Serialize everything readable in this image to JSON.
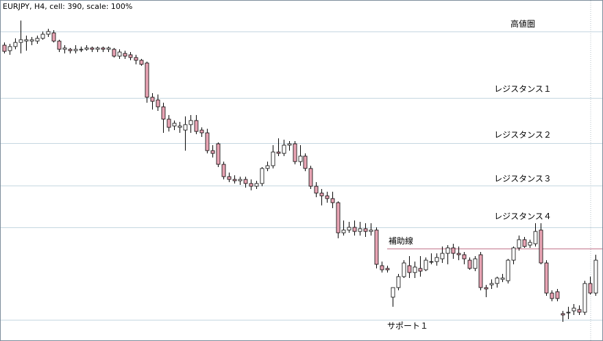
{
  "chart_data": {
    "type": "candlestick",
    "title": "EURJPY, H4, cell: 390, scale: 100%",
    "ylim": [
      0,
      498
    ],
    "up_color": "#ffffff",
    "down_color": "#e8a4b4",
    "wick_color": "#000000",
    "levels": [
      {
        "label": "高値圏",
        "value": 452,
        "color": "#c4d6e0"
      },
      {
        "label": "レジスタンス１",
        "value": 355,
        "color": "#c4d6e0"
      },
      {
        "label": "レジスタンス２",
        "value": 289,
        "color": "#c4d6e0"
      },
      {
        "label": "レジスタンス３",
        "value": 227,
        "color": "#c4d6e0"
      },
      {
        "label": "レジスタンス４",
        "value": 166,
        "color": "#c4d6e0"
      },
      {
        "label": "補助線",
        "value": 135,
        "color": "#c07088"
      },
      {
        "label": "サポート１",
        "value": 31,
        "color": "#c4d6e0"
      }
    ],
    "open": [
      432,
      424,
      430,
      436,
      438,
      438,
      438,
      442,
      448,
      450,
      438,
      426,
      426,
      424,
      425,
      426,
      428,
      426,
      428,
      426,
      426,
      416,
      420,
      418,
      414,
      410,
      406,
      356,
      352,
      342,
      324,
      314,
      312,
      308,
      316,
      322,
      308,
      304,
      278,
      288,
      258,
      240,
      236,
      234,
      236,
      230,
      226,
      230,
      252,
      256,
      276,
      274,
      286,
      288,
      262,
      270,
      252,
      226,
      216,
      212,
      208,
      202,
      158,
      162,
      166,
      160,
      164,
      160,
      162,
      110,
      106,
      64,
      78,
      94,
      110,
      100,
      106,
      104,
      116,
      116,
      120,
      128,
      136,
      128,
      126,
      118,
      106,
      126,
      78,
      82,
      84,
      90,
      88,
      118,
      136,
      148,
      140,
      142,
      162,
      114,
      70,
      72,
      40,
      42,
      44,
      46,
      42,
      84,
      70
    ],
    "high": [
      436,
      434,
      442,
      468,
      446,
      444,
      446,
      452,
      456,
      454,
      440,
      432,
      428,
      432,
      430,
      432,
      430,
      430,
      430,
      430,
      428,
      426,
      424,
      422,
      418,
      412,
      408,
      362,
      360,
      348,
      330,
      322,
      320,
      328,
      330,
      330,
      312,
      310,
      286,
      290,
      262,
      246,
      242,
      240,
      240,
      236,
      234,
      254,
      262,
      286,
      296,
      294,
      292,
      292,
      286,
      274,
      256,
      232,
      222,
      218,
      218,
      204,
      176,
      174,
      176,
      174,
      172,
      172,
      166,
      116,
      110,
      78,
      98,
      118,
      124,
      116,
      124,
      122,
      128,
      128,
      138,
      140,
      142,
      138,
      130,
      122,
      124,
      130,
      82,
      90,
      94,
      98,
      120,
      138,
      154,
      152,
      148,
      172,
      172,
      118,
      74,
      76,
      44,
      50,
      54,
      52,
      88,
      94,
      126
    ],
    "low": [
      420,
      418,
      426,
      420,
      424,
      432,
      434,
      440,
      444,
      436,
      422,
      420,
      420,
      420,
      422,
      424,
      422,
      422,
      422,
      422,
      414,
      412,
      412,
      410,
      404,
      402,
      348,
      338,
      336,
      304,
      306,
      308,
      304,
      278,
      304,
      302,
      298,
      274,
      268,
      254,
      236,
      232,
      230,
      228,
      224,
      220,
      222,
      226,
      248,
      252,
      270,
      270,
      278,
      258,
      256,
      248,
      222,
      210,
      198,
      202,
      194,
      150,
      154,
      158,
      154,
      154,
      152,
      154,
      106,
      100,
      100,
      50,
      74,
      92,
      92,
      92,
      94,
      102,
      112,
      110,
      114,
      112,
      120,
      118,
      112,
      104,
      102,
      74,
      64,
      76,
      78,
      86,
      84,
      112,
      132,
      136,
      136,
      138,
      112,
      66,
      58,
      58,
      28,
      32,
      38,
      38,
      38,
      68,
      66
    ],
    "close": [
      423,
      430,
      436,
      440,
      440,
      440,
      442,
      448,
      452,
      438,
      426,
      428,
      424,
      426,
      426,
      428,
      426,
      428,
      426,
      428,
      416,
      422,
      416,
      414,
      410,
      404,
      356,
      350,
      342,
      324,
      312,
      318,
      314,
      316,
      322,
      306,
      304,
      278,
      274,
      258,
      240,
      236,
      234,
      236,
      230,
      226,
      230,
      252,
      256,
      276,
      274,
      286,
      288,
      262,
      270,
      252,
      226,
      216,
      212,
      208,
      202,
      158,
      162,
      166,
      160,
      164,
      160,
      162,
      112,
      104,
      104,
      78,
      94,
      114,
      100,
      108,
      102,
      118,
      116,
      122,
      128,
      136,
      128,
      126,
      120,
      106,
      120,
      78,
      76,
      84,
      92,
      92,
      118,
      136,
      148,
      138,
      144,
      160,
      114,
      70,
      62,
      62,
      38,
      42,
      48,
      42,
      84,
      70,
      118
    ]
  }
}
